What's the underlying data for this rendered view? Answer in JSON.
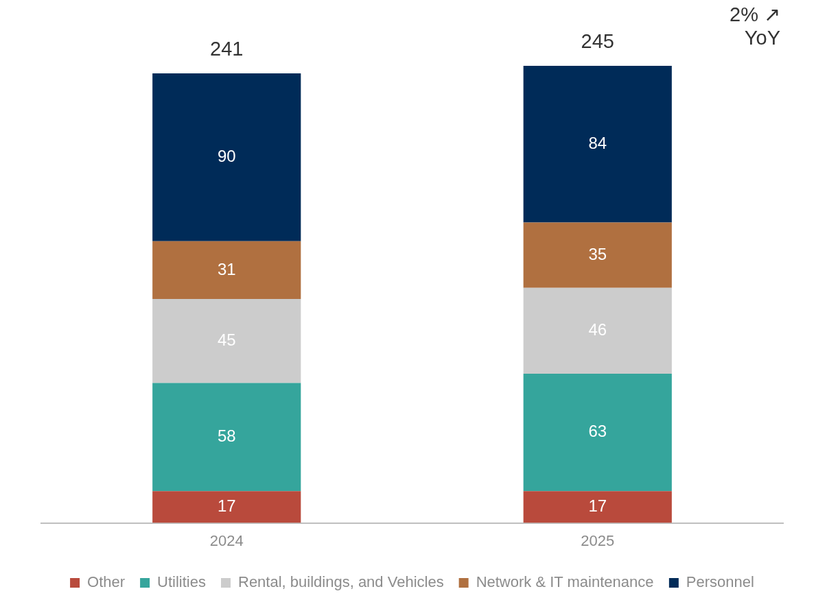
{
  "chart_data": {
    "type": "bar",
    "stacked": true,
    "categories": [
      "2024",
      "2025"
    ],
    "series": [
      {
        "name": "Other",
        "color": "#b94a3c",
        "values": [
          17,
          17
        ]
      },
      {
        "name": "Utilities",
        "color": "#35a59c",
        "values": [
          58,
          63
        ]
      },
      {
        "name": "Rental, buildings, and Vehicles",
        "color": "#cccccc",
        "values": [
          45,
          46
        ]
      },
      {
        "name": "Network & IT maintenance",
        "color": "#b07040",
        "values": [
          31,
          35
        ]
      },
      {
        "name": "Personnel",
        "color": "#002b58",
        "values": [
          90,
          84
        ]
      }
    ],
    "data_labels": true,
    "totals": [
      "241",
      "245"
    ],
    "legend": "bottom",
    "grid": false,
    "annotations": [
      "2% ↗ YoY"
    ]
  }
}
